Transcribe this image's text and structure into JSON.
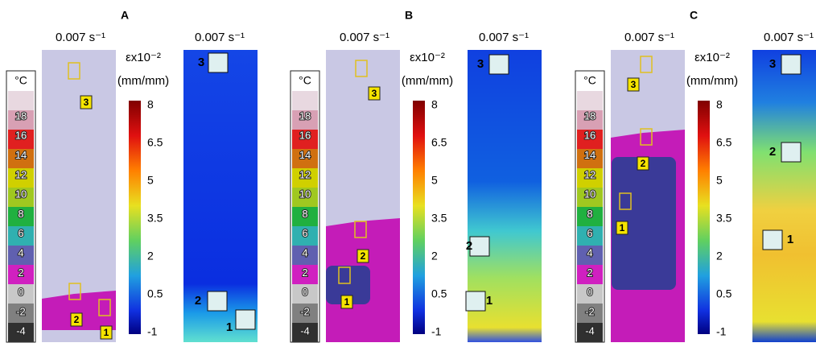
{
  "temperature_scale": {
    "unit": "°C",
    "labels": [
      "18",
      "16",
      "14",
      "12",
      "10",
      "8",
      "6",
      "4",
      "2",
      "0",
      "-2",
      "-4"
    ]
  },
  "strain_scale": {
    "unit_line1": "εx10⁻²",
    "unit_line2": "(mm/mm)",
    "labels": [
      "8",
      "6.5",
      "5",
      "3.5",
      "2",
      "0.5",
      "-1"
    ]
  },
  "panels": [
    {
      "letter": "A",
      "thermal_title": "0.007 s⁻¹",
      "strain_title": "0.007 s⁻¹",
      "thermal_markers": [
        "3",
        "2",
        "1"
      ],
      "strain_markers": [
        "3",
        "2",
        "1"
      ]
    },
    {
      "letter": "B",
      "thermal_title": "0.007 s⁻¹",
      "strain_title": "0.007 s⁻¹",
      "thermal_markers": [
        "3",
        "2",
        "1"
      ],
      "strain_markers": [
        "3",
        "2",
        "1"
      ]
    },
    {
      "letter": "C",
      "thermal_title": "0.007 s⁻¹",
      "strain_title": "0.007 s⁻¹",
      "thermal_markers": [
        "3",
        "2",
        "1"
      ],
      "strain_markers": [
        "3",
        "2",
        "1"
      ]
    }
  ]
}
